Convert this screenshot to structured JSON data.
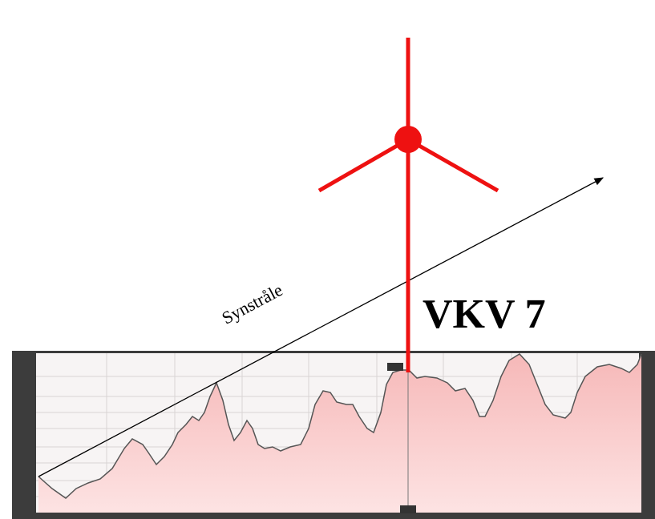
{
  "labels": {
    "sightline": "Synstråle",
    "turbine": "VKV 7"
  }
}
